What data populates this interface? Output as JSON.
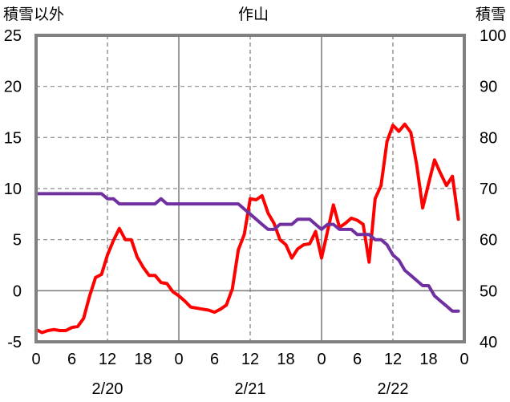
{
  "chart_data": {
    "type": "line",
    "title": "作山",
    "left_axis_label": "積雪以外",
    "right_axis_label": "積雪",
    "left_ylim": [
      -5,
      25
    ],
    "left_ticks": [
      "25",
      "20",
      "15",
      "10",
      "5",
      "0",
      "-5"
    ],
    "right_ylim": [
      40,
      100
    ],
    "right_ticks": [
      "100",
      "90",
      "80",
      "70",
      "60",
      "50",
      "40"
    ],
    "xlim": [
      0,
      72
    ],
    "x_tick_labels": [
      "0",
      "6",
      "12",
      "18",
      "0",
      "6",
      "12",
      "18",
      "0",
      "6",
      "12",
      "18",
      "0"
    ],
    "date_labels": [
      "2/20",
      "2/21",
      "2/22"
    ],
    "grid": true,
    "colors": {
      "red_series": "#ff0000",
      "purple_series": "#7030a0",
      "frame": "#808080"
    },
    "series": [
      {
        "axis": "left",
        "color": "#ff0000",
        "x": [
          0,
          1,
          2,
          3,
          4,
          5,
          6,
          7,
          8,
          9,
          10,
          11,
          12,
          13,
          14,
          15,
          16,
          17,
          18,
          19,
          20,
          21,
          22,
          23,
          24,
          25,
          26,
          27,
          28,
          29,
          30,
          31,
          32,
          33,
          34,
          35,
          36,
          37,
          38,
          39,
          40,
          41,
          42,
          43,
          44,
          45,
          46,
          47,
          48,
          49,
          50,
          51,
          52,
          53,
          54,
          55,
          56,
          57,
          58,
          59,
          60,
          61,
          62,
          63,
          64,
          65,
          66,
          67,
          68,
          69,
          70,
          71
        ],
        "values": [
          -3.8,
          -4.1,
          -3.9,
          -3.8,
          -3.9,
          -3.9,
          -3.6,
          -3.5,
          -2.7,
          -0.5,
          1.3,
          1.6,
          3.5,
          4.9,
          6.1,
          5.0,
          5.0,
          3.3,
          2.3,
          1.5,
          1.5,
          0.8,
          0.7,
          -0.1,
          -0.5,
          -1.0,
          -1.6,
          -1.7,
          -1.8,
          -1.9,
          -2.1,
          -1.8,
          -1.4,
          0.2,
          4.0,
          5.5,
          9.0,
          8.9,
          9.3,
          7.6,
          6.6,
          5.0,
          4.5,
          3.2,
          4.1,
          4.5,
          4.6,
          5.8,
          3.2,
          5.8,
          8.4,
          6.2,
          6.6,
          7.1,
          6.9,
          6.5,
          2.8,
          9.0,
          10.3,
          14.6,
          16.2,
          15.6,
          16.3,
          15.5,
          12.3,
          8.1,
          10.5,
          12.8,
          11.5,
          10.3,
          11.2,
          7.0
        ]
      },
      {
        "axis": "right",
        "color": "#7030a0",
        "x": [
          0,
          1,
          2,
          3,
          4,
          5,
          6,
          7,
          8,
          9,
          10,
          11,
          12,
          13,
          14,
          15,
          16,
          17,
          18,
          19,
          20,
          21,
          22,
          23,
          24,
          25,
          26,
          27,
          28,
          29,
          30,
          31,
          32,
          33,
          34,
          35,
          36,
          37,
          38,
          39,
          40,
          41,
          42,
          43,
          44,
          45,
          46,
          47,
          48,
          49,
          50,
          51,
          52,
          53,
          54,
          55,
          56,
          57,
          58,
          59,
          60,
          61,
          62,
          63,
          64,
          65,
          66,
          67,
          68,
          69,
          70,
          71
        ],
        "values": [
          69,
          69,
          69,
          69,
          69,
          69,
          69,
          69,
          69,
          69,
          69,
          69,
          68,
          68,
          67,
          67,
          67,
          67,
          67,
          67,
          67,
          68,
          67,
          67,
          67,
          67,
          67,
          67,
          67,
          67,
          67,
          67,
          67,
          67,
          67,
          66,
          65,
          64,
          63,
          62,
          62,
          63,
          63,
          63,
          64,
          64,
          64,
          63,
          62,
          63,
          63,
          62,
          62,
          62,
          61,
          61,
          61,
          60,
          60,
          59,
          57,
          56,
          54,
          53,
          52,
          51,
          51,
          49,
          48,
          47,
          46,
          46
        ]
      }
    ]
  }
}
